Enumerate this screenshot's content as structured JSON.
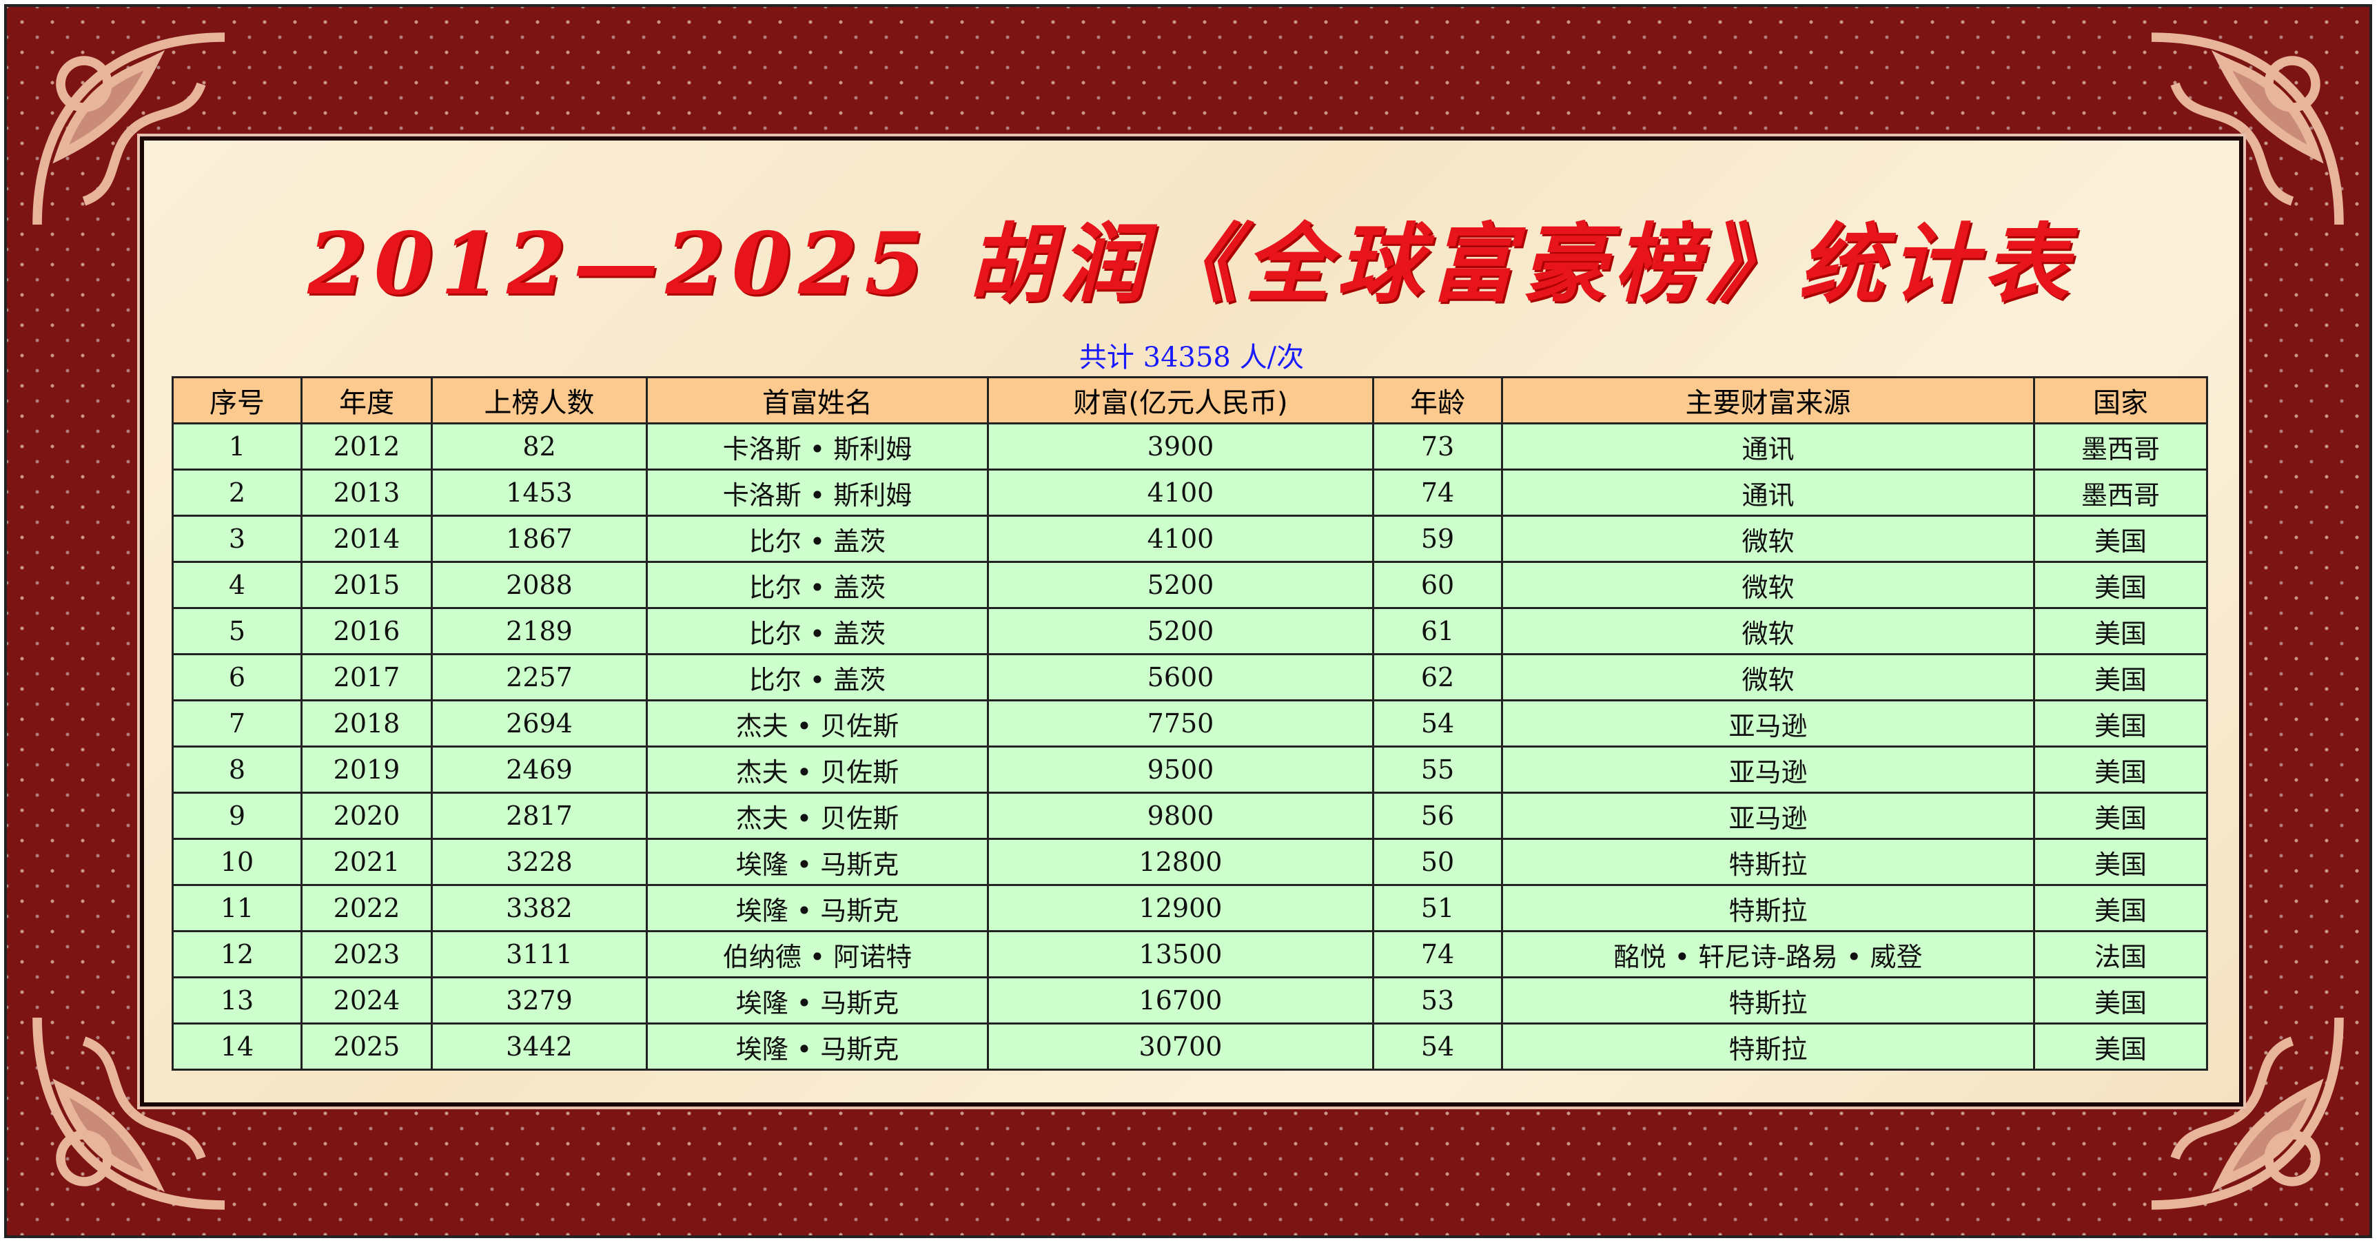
{
  "title": "2012—2025 胡润《全球富豪榜》统计表",
  "subtitle": "共计 34358 人/次",
  "colors": {
    "border": "#7d1414",
    "title": "#e8141c",
    "subtitle": "#1a1aff",
    "header_bg": "#fcc98e",
    "row_bg": "#ccffcc"
  },
  "table": {
    "headers": [
      "序号",
      "年度",
      "上榜人数",
      "首富姓名",
      "财富(亿元人民币)",
      "年龄",
      "主要财富来源",
      "国家"
    ],
    "rows": [
      [
        "1",
        "2012",
        "82",
        "卡洛斯 • 斯利姆",
        "3900",
        "73",
        "通讯",
        "墨西哥"
      ],
      [
        "2",
        "2013",
        "1453",
        "卡洛斯 • 斯利姆",
        "4100",
        "74",
        "通讯",
        "墨西哥"
      ],
      [
        "3",
        "2014",
        "1867",
        "比尔 • 盖茨",
        "4100",
        "59",
        "微软",
        "美国"
      ],
      [
        "4",
        "2015",
        "2088",
        "比尔 • 盖茨",
        "5200",
        "60",
        "微软",
        "美国"
      ],
      [
        "5",
        "2016",
        "2189",
        "比尔 • 盖茨",
        "5200",
        "61",
        "微软",
        "美国"
      ],
      [
        "6",
        "2017",
        "2257",
        "比尔 • 盖茨",
        "5600",
        "62",
        "微软",
        "美国"
      ],
      [
        "7",
        "2018",
        "2694",
        "杰夫 • 贝佐斯",
        "7750",
        "54",
        "亚马逊",
        "美国"
      ],
      [
        "8",
        "2019",
        "2469",
        "杰夫 • 贝佐斯",
        "9500",
        "55",
        "亚马逊",
        "美国"
      ],
      [
        "9",
        "2020",
        "2817",
        "杰夫 • 贝佐斯",
        "9800",
        "56",
        "亚马逊",
        "美国"
      ],
      [
        "10",
        "2021",
        "3228",
        "埃隆 • 马斯克",
        "12800",
        "50",
        "特斯拉",
        "美国"
      ],
      [
        "11",
        "2022",
        "3382",
        "埃隆 • 马斯克",
        "12900",
        "51",
        "特斯拉",
        "美国"
      ],
      [
        "12",
        "2023",
        "3111",
        "伯纳德 • 阿诺特",
        "13500",
        "74",
        "酩悦 • 轩尼诗-路易 • 威登",
        "法国"
      ],
      [
        "13",
        "2024",
        "3279",
        "埃隆 • 马斯克",
        "16700",
        "53",
        "特斯拉",
        "美国"
      ],
      [
        "14",
        "2025",
        "3442",
        "埃隆 • 马斯克",
        "30700",
        "54",
        "特斯拉",
        "美国"
      ]
    ]
  }
}
